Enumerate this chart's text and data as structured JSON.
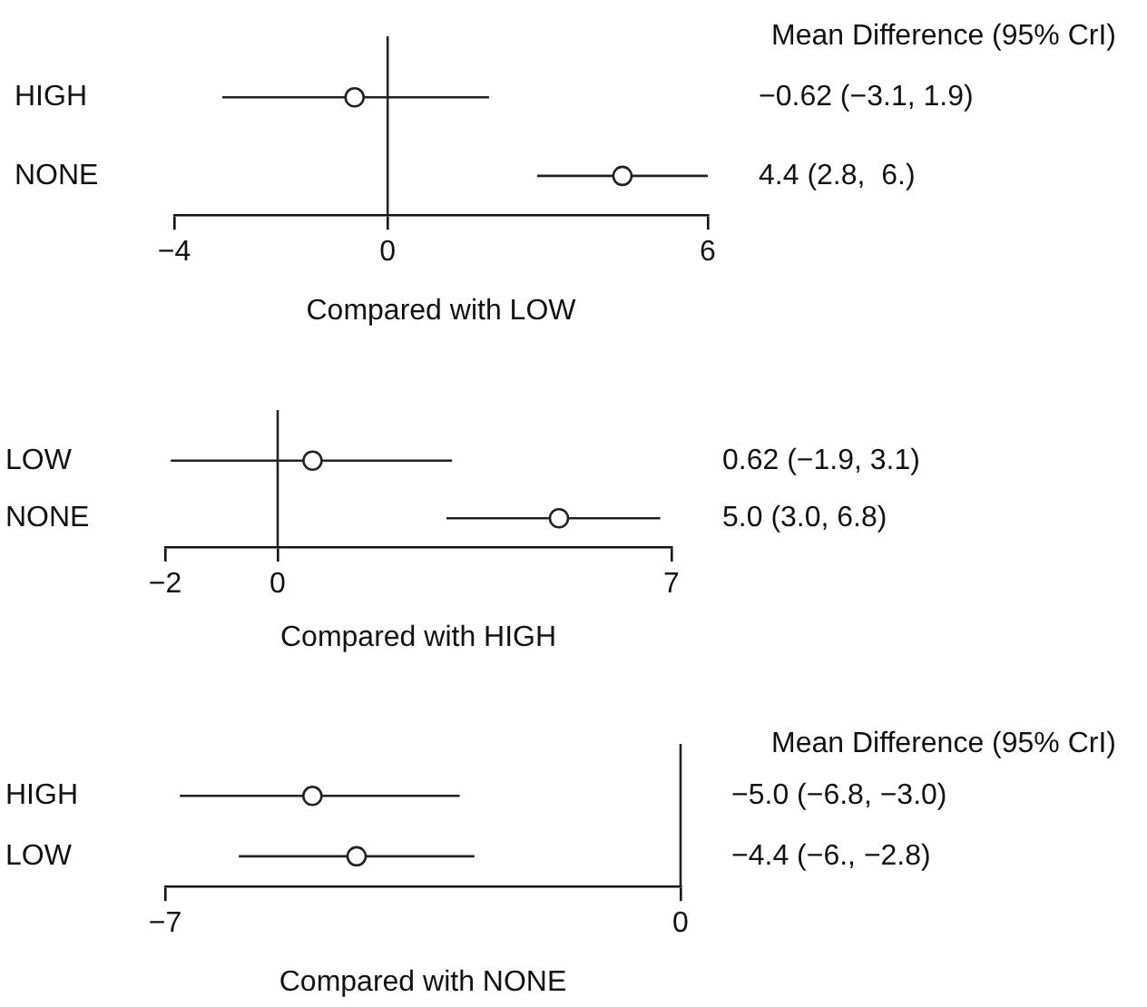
{
  "chart_data": [
    {
      "type": "scatter",
      "orientation": "horizontal",
      "categories": [
        "HIGH",
        "NONE"
      ],
      "values": [
        -0.62,
        4.4
      ],
      "errors": [
        [
          -3.1,
          1.9
        ],
        [
          2.8,
          6.0
        ]
      ],
      "color": "#222222",
      "marker": "circle",
      "xlim": [
        -4,
        6
      ],
      "xticks": [
        {
          "value": -4,
          "label": "−4"
        },
        0,
        6
      ],
      "xlabel": "Compared with LOW",
      "ref_lines": [
        {
          "axis": "x",
          "value": 0
        }
      ],
      "annotations": [
        "Mean Difference (95% CrI)",
        "−0.62 (−3.1, 1.9)",
        "4.4 (2.8,  6.)"
      ],
      "legend": false
    },
    {
      "type": "scatter",
      "orientation": "horizontal",
      "categories": [
        "LOW",
        "NONE"
      ],
      "values": [
        0.62,
        5.0
      ],
      "errors": [
        [
          -1.9,
          3.1
        ],
        [
          3.0,
          6.8
        ]
      ],
      "color": "#222222",
      "marker": "circle",
      "xlim": [
        -2,
        7
      ],
      "xticks": [
        {
          "value": -2,
          "label": "−2"
        },
        0,
        7
      ],
      "xlabel": "Compared with HIGH",
      "ref_lines": [
        {
          "axis": "x",
          "value": 0
        }
      ],
      "annotations": [
        "0.62 (−1.9, 3.1)",
        "5.0 (3.0, 6.8)"
      ],
      "legend": false
    },
    {
      "type": "scatter",
      "orientation": "horizontal",
      "categories": [
        "HIGH",
        "LOW"
      ],
      "values": [
        -5.0,
        -4.4
      ],
      "errors": [
        [
          -6.8,
          -3.0
        ],
        [
          -6.0,
          -2.8
        ]
      ],
      "color": "#222222",
      "marker": "circle",
      "xlim": [
        -7,
        0
      ],
      "xticks": [
        {
          "value": -7,
          "label": "−7"
        },
        0
      ],
      "xlabel": "Compared with NONE",
      "ref_lines": [
        {
          "axis": "x",
          "value": 0
        }
      ],
      "annotations": [
        "Mean Difference (95% CrI)",
        "−5.0 (−6.8, −3.0)",
        "−4.4 (−6., −2.8)"
      ],
      "legend": false
    }
  ]
}
